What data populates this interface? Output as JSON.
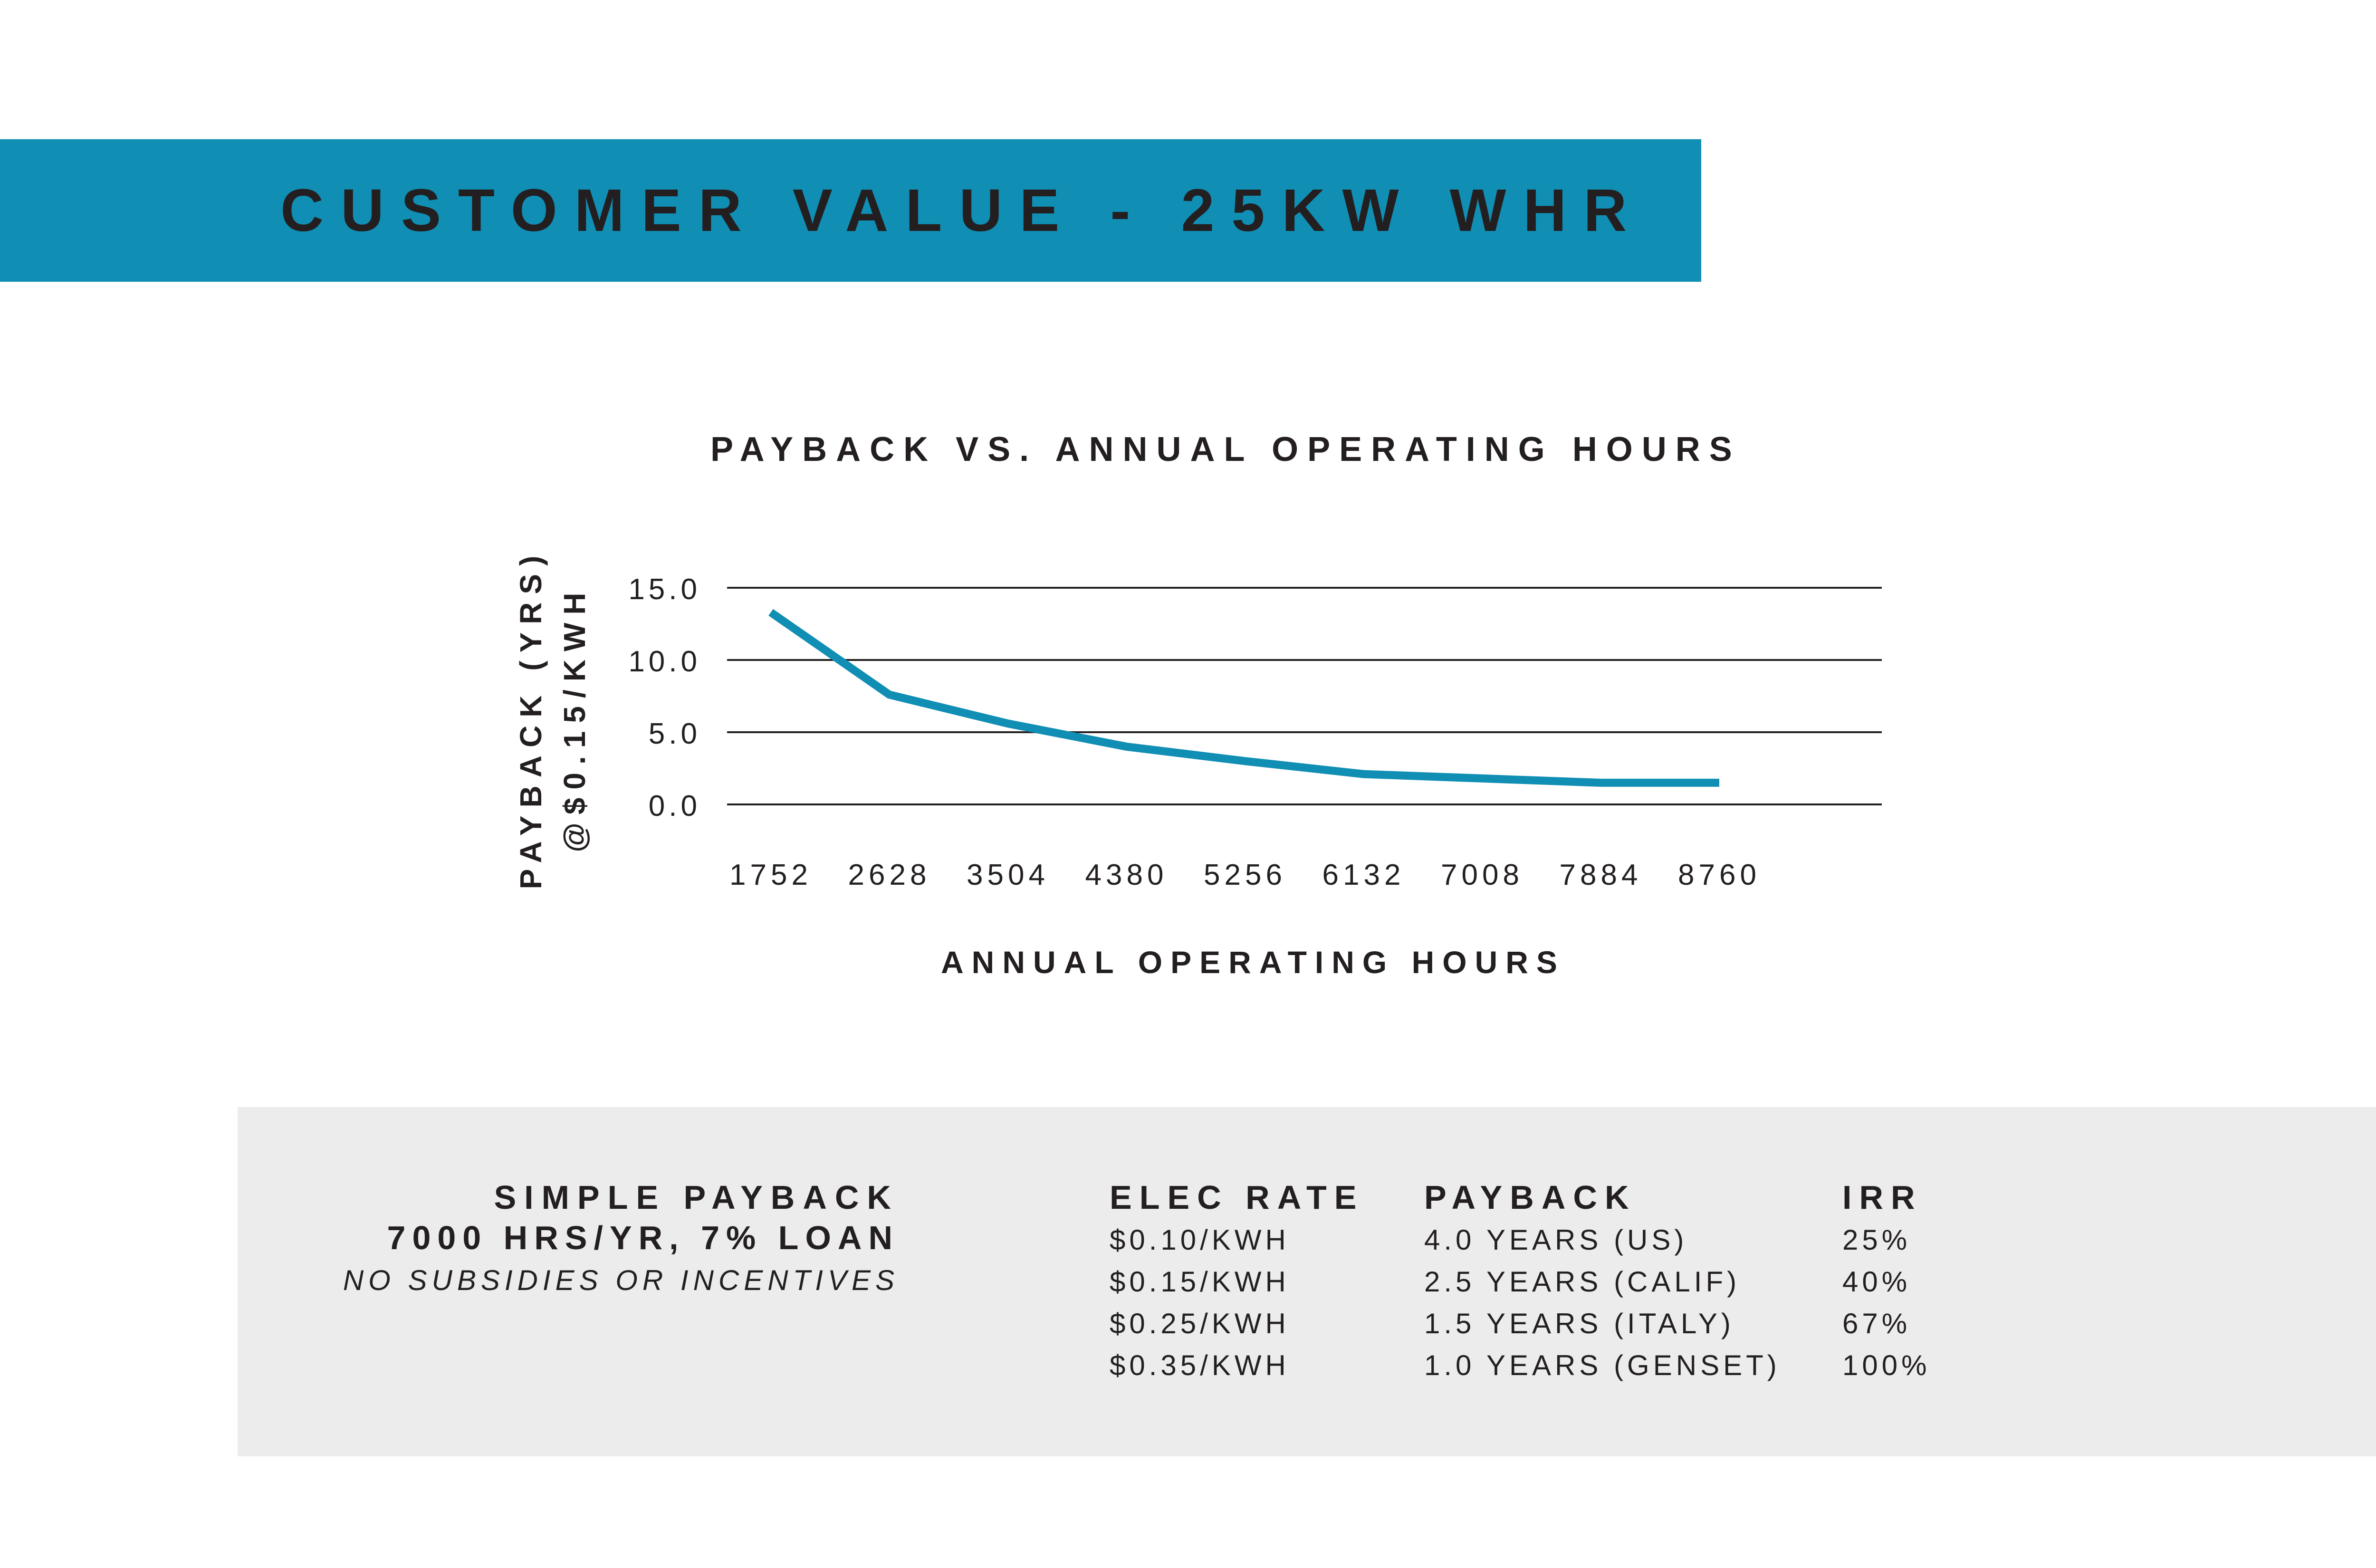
{
  "banner": {
    "title": "CUSTOMER VALUE - 25KW WHR",
    "color": "#108eb4"
  },
  "chart_data": {
    "type": "line",
    "title": "PAYBACK VS. ANNUAL OPERATING HOURS",
    "xlabel": "ANNUAL OPERATING HOURS",
    "ylabel_lines": [
      "PAYBACK (YRS)",
      "@$0.15/KWH"
    ],
    "x": [
      "1752",
      "2628",
      "3504",
      "4380",
      "5256",
      "6132",
      "7008",
      "7884",
      "8760"
    ],
    "yticks": [
      "15.0",
      "10.0",
      "5.0",
      "0.0"
    ],
    "ylim": [
      0,
      15
    ],
    "grid": true,
    "line_color": "#108eb4",
    "series": [
      {
        "values": [
          13.3,
          7.6,
          5.6,
          4.0,
          3.0,
          2.1,
          1.8,
          1.5,
          1.5
        ]
      }
    ]
  },
  "summary": {
    "title_lines": [
      "SIMPLE PAYBACK",
      "7000 HRS/YR, 7% LOAN",
      "NO SUBSIDIES OR INCENTIVES"
    ],
    "columns": [
      "ELEC RATE",
      "PAYBACK",
      "IRR"
    ],
    "rows": [
      [
        "$0.10/KWH",
        "4.0 YEARS (US)",
        "25%"
      ],
      [
        "$0.15/KWH",
        "2.5 YEARS (CALIF)",
        "40%"
      ],
      [
        "$0.25/KWH",
        "1.5 YEARS (ITALY)",
        "67%"
      ],
      [
        "$0.35/KWH",
        "1.0 YEARS (GENSET)",
        "100%"
      ]
    ]
  }
}
